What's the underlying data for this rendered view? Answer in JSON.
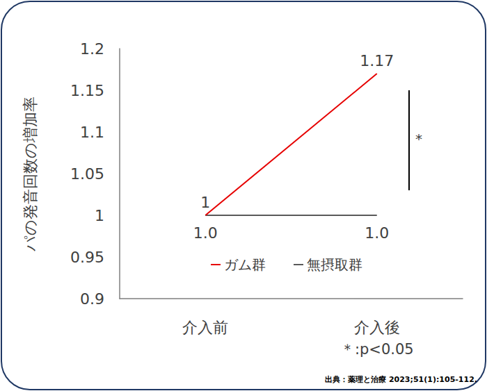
{
  "chart_data": {
    "type": "line",
    "categories": [
      "介入前",
      "介入後"
    ],
    "y_label": "パの発音回数の増加率",
    "series": [
      {
        "name": "ガム群",
        "color": "#e60000",
        "values": [
          1,
          1.17
        ]
      },
      {
        "name": "無摂取群",
        "color": "#595959",
        "values": [
          1,
          1
        ],
        "value_labels": [
          "1.0",
          "1.0"
        ]
      }
    ],
    "ylim": [
      0.9,
      1.2
    ],
    "yticks": [
      0.9,
      0.95,
      1,
      1.05,
      1.1,
      1.15,
      1.2
    ],
    "data_labels": true,
    "grid": false,
    "significance": {
      "from": 1.03,
      "to": 1.15,
      "label": "*"
    },
    "footnote": "＊:p<0.05",
    "source": "出典：薬理と治療 2023;51(1):105-112."
  }
}
